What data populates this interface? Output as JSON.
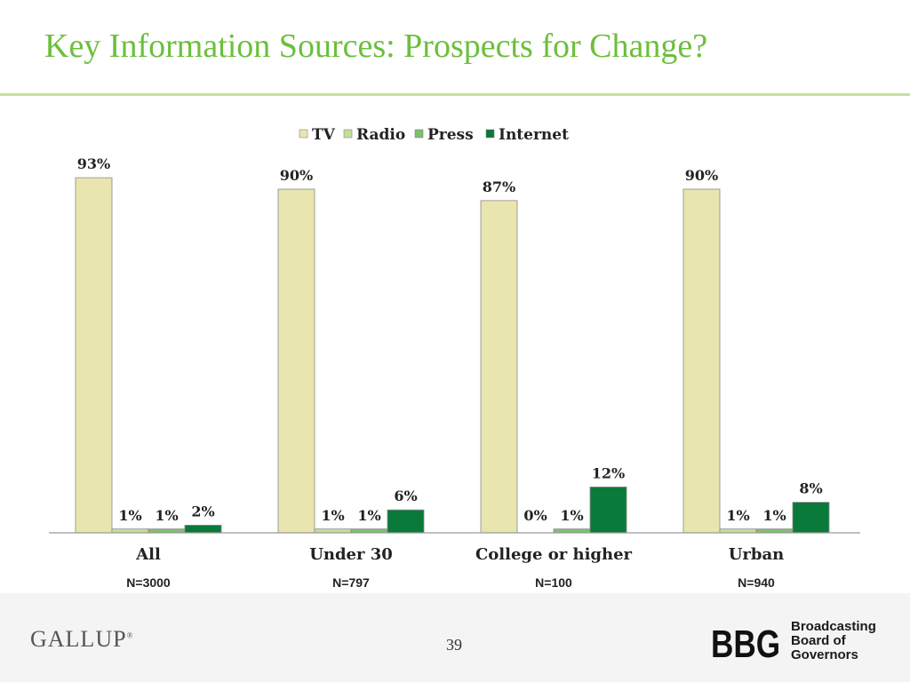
{
  "slide": {
    "title": "Key Information Sources: Prospects for Change?",
    "page_number": "39",
    "logo_left": "GALLUP",
    "logo_left_mark": "®",
    "logo_right_mark": "BBG",
    "logo_right_lines": [
      "Broadcasting",
      "Board of",
      "Governors"
    ]
  },
  "colors": {
    "title": "#6cbf3d",
    "tv": "#e8e5ae",
    "radio": "#c3de9a",
    "press": "#7cc070",
    "internet": "#0a7a3a"
  },
  "chart_data": {
    "type": "bar",
    "categories": [
      "All",
      "Under 30",
      "College or higher",
      "Urban"
    ],
    "sample_sizes": [
      "N=3000",
      "N=797",
      "N=100",
      "N=940"
    ],
    "series": [
      {
        "name": "TV",
        "values": [
          93,
          90,
          87,
          90
        ],
        "labels": [
          "93%",
          "90%",
          "87%",
          "90%"
        ]
      },
      {
        "name": "Radio",
        "values": [
          1,
          1,
          0,
          1
        ],
        "labels": [
          "1%",
          "1%",
          "0%",
          "1%"
        ]
      },
      {
        "name": "Press",
        "values": [
          1,
          1,
          1,
          1
        ],
        "labels": [
          "1%",
          "1%",
          "1%",
          "1%"
        ]
      },
      {
        "name": "Internet",
        "values": [
          2,
          6,
          12,
          8
        ],
        "labels": [
          "2%",
          "6%",
          "12%",
          "8%"
        ]
      }
    ],
    "ylim": [
      0,
      100
    ],
    "grid": false,
    "legend_position": "top-center",
    "xlabel": "",
    "ylabel": ""
  }
}
